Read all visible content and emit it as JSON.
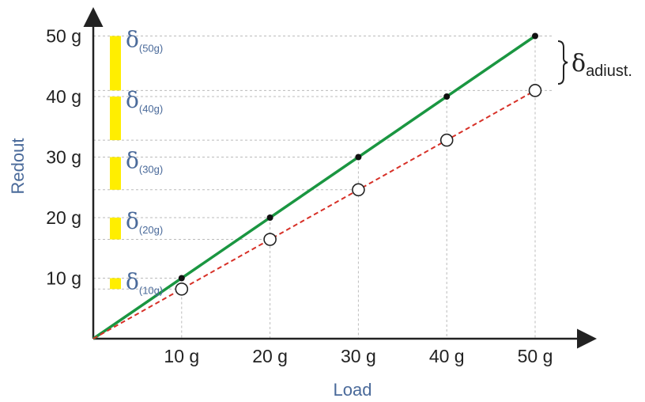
{
  "chart_data": {
    "type": "line",
    "xlabel": "Load",
    "ylabel": "Redout",
    "x_ticks": [
      "10 g",
      "20 g",
      "30 g",
      "40 g",
      "50 g"
    ],
    "y_ticks": [
      "10 g",
      "20 g",
      "30 g",
      "40 g",
      "50 g"
    ],
    "x": [
      10,
      20,
      30,
      40,
      50
    ],
    "series": [
      {
        "style": "solid",
        "color": "#1a9641",
        "marker": "filled-dot",
        "values": [
          10,
          20,
          30,
          40,
          50
        ]
      },
      {
        "style": "dashed",
        "color": "#d73027",
        "marker": "open-circle",
        "values": [
          8.2,
          16.4,
          24.6,
          32.8,
          41.0
        ]
      }
    ],
    "deviation_labels": [
      {
        "symbol": "δ",
        "sub": "(10g)",
        "level": 10
      },
      {
        "symbol": "δ",
        "sub": "(20g)",
        "level": 20
      },
      {
        "symbol": "δ",
        "sub": "(30g)",
        "level": 30
      },
      {
        "symbol": "δ",
        "sub": "(40g)",
        "level": 40
      },
      {
        "symbol": "δ",
        "sub": "(50g)",
        "level": 50
      }
    ],
    "adjust_label": {
      "symbol": "δ",
      "sub": "adiust."
    },
    "bar_color": "#ffee00",
    "xlim": [
      0,
      50
    ],
    "ylim": [
      0,
      50
    ],
    "grid": true
  }
}
